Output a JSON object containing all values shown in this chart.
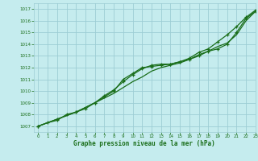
{
  "xlabel": "Graphe pression niveau de la mer (hPa)",
  "xlim": [
    -0.5,
    23
  ],
  "ylim": [
    1006.5,
    1017.5
  ],
  "yticks": [
    1007,
    1008,
    1009,
    1010,
    1011,
    1012,
    1013,
    1014,
    1015,
    1016,
    1017
  ],
  "xticks": [
    0,
    1,
    2,
    3,
    4,
    5,
    6,
    7,
    8,
    9,
    10,
    11,
    12,
    13,
    14,
    15,
    16,
    17,
    18,
    19,
    20,
    21,
    22,
    23
  ],
  "bg_color": "#c5ecee",
  "grid_color": "#9dcdd4",
  "line_color": "#1a6e1a",
  "series1_x": [
    0,
    1,
    2,
    3,
    4,
    5,
    6,
    7,
    8,
    9,
    10,
    11,
    12,
    13,
    14,
    15,
    16,
    17,
    18,
    19,
    20,
    21,
    22,
    23
  ],
  "series1_y": [
    1007.0,
    1007.3,
    1007.6,
    1007.9,
    1008.2,
    1008.6,
    1009.0,
    1009.4,
    1009.8,
    1010.3,
    1010.8,
    1011.2,
    1011.7,
    1012.0,
    1012.2,
    1012.4,
    1012.7,
    1013.1,
    1013.4,
    1013.8,
    1014.1,
    1014.8,
    1016.0,
    1016.8
  ],
  "series2_x": [
    0,
    2,
    4,
    6,
    7,
    8,
    9,
    10,
    11,
    12,
    13,
    14,
    15,
    16,
    17,
    18,
    19,
    20,
    21,
    22,
    23
  ],
  "series2_y": [
    1007.0,
    1007.6,
    1008.2,
    1009.0,
    1009.5,
    1010.0,
    1011.0,
    1011.5,
    1012.0,
    1012.1,
    1012.2,
    1012.3,
    1012.5,
    1012.7,
    1013.0,
    1013.4,
    1013.6,
    1014.0,
    1015.0,
    1016.2,
    1016.8
  ],
  "series3_x": [
    0,
    1,
    2,
    3,
    4,
    5,
    6,
    7,
    8,
    9,
    10,
    11,
    12,
    13,
    14,
    15,
    16,
    17,
    18,
    19,
    20,
    21,
    22,
    23
  ],
  "series3_y": [
    1007.0,
    1007.3,
    1007.5,
    1008.0,
    1008.2,
    1008.5,
    1009.0,
    1009.6,
    1010.1,
    1010.8,
    1011.4,
    1011.9,
    1012.2,
    1012.3,
    1012.3,
    1012.5,
    1012.8,
    1013.3,
    1013.6,
    1014.2,
    1014.8,
    1015.5,
    1016.3,
    1016.9
  ]
}
